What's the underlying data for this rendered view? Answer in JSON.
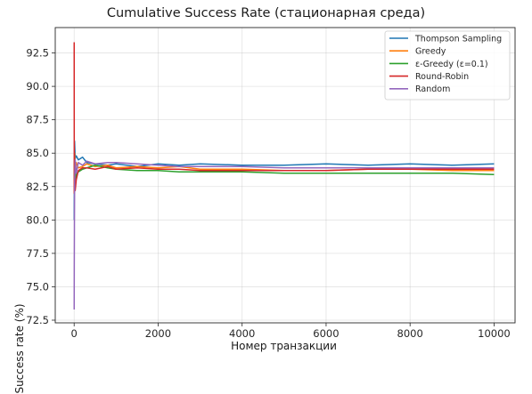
{
  "chart_data": {
    "type": "line",
    "title": "Cumulative Success Rate (стационарная среда)",
    "xlabel": "Номер транзакции",
    "ylabel": "Success rate (%)",
    "xlim": [
      -450,
      10500
    ],
    "ylim": [
      72.3,
      94.4
    ],
    "xticks": [
      0,
      2000,
      4000,
      6000,
      8000,
      10000
    ],
    "yticks": [
      72.5,
      75.0,
      77.5,
      80.0,
      82.5,
      85.0,
      87.5,
      90.0,
      92.5
    ],
    "ytick_labels": [
      "72.5",
      "75.0",
      "77.5",
      "80.0",
      "82.5",
      "85.0",
      "87.5",
      "90.0",
      "92.5"
    ],
    "grid": true,
    "legend_position": "top-right",
    "series": [
      {
        "name": "Thompson Sampling",
        "color": "#1f77b4",
        "x": [
          1,
          10,
          25,
          50,
          100,
          200,
          300,
          500,
          800,
          1000,
          1500,
          2000,
          2500,
          3000,
          4000,
          5000,
          6000,
          7000,
          8000,
          9000,
          10000
        ],
        "y": [
          80.0,
          85.9,
          84.6,
          84.8,
          84.5,
          84.7,
          84.3,
          84.2,
          84.1,
          84.2,
          84.0,
          84.2,
          84.1,
          84.2,
          84.1,
          84.1,
          84.2,
          84.1,
          84.2,
          84.1,
          84.2
        ]
      },
      {
        "name": "Greedy",
        "color": "#ff7f0e",
        "x": [
          1,
          10,
          25,
          50,
          100,
          200,
          300,
          500,
          800,
          1000,
          1500,
          2000,
          2500,
          3000,
          4000,
          5000,
          6000,
          7000,
          8000,
          9000,
          10000
        ],
        "y": [
          82.0,
          85.0,
          83.5,
          84.3,
          83.9,
          84.0,
          84.2,
          84.0,
          84.1,
          83.9,
          84.0,
          83.9,
          84.0,
          83.8,
          83.8,
          83.7,
          83.7,
          83.8,
          83.8,
          83.7,
          83.7
        ]
      },
      {
        "name": "ε-Greedy (ε=0.1)",
        "color": "#2ca02c",
        "x": [
          1,
          10,
          25,
          50,
          100,
          200,
          300,
          500,
          800,
          1000,
          1500,
          2000,
          2500,
          3000,
          4000,
          5000,
          6000,
          7000,
          8000,
          9000,
          10000
        ],
        "y": [
          83.0,
          84.5,
          82.8,
          83.4,
          83.6,
          83.8,
          83.9,
          84.1,
          83.9,
          83.8,
          83.7,
          83.7,
          83.6,
          83.6,
          83.6,
          83.5,
          83.5,
          83.5,
          83.5,
          83.5,
          83.4
        ]
      },
      {
        "name": "Round-Robin",
        "color": "#d62728",
        "x": [
          1,
          3,
          10,
          25,
          50,
          100,
          200,
          300,
          500,
          800,
          1000,
          1500,
          2000,
          2500,
          3000,
          4000,
          5000,
          6000,
          7000,
          8000,
          9000,
          10000
        ],
        "y": [
          93.3,
          82.0,
          84.0,
          82.2,
          83.0,
          83.7,
          83.9,
          83.9,
          83.8,
          84.0,
          83.8,
          83.9,
          83.8,
          83.8,
          83.7,
          83.7,
          83.7,
          83.7,
          83.8,
          83.8,
          83.8,
          83.8
        ]
      },
      {
        "name": "Random",
        "color": "#9467bd",
        "x": [
          1,
          3,
          10,
          25,
          50,
          100,
          200,
          300,
          500,
          800,
          1000,
          1500,
          2000,
          2500,
          3000,
          4000,
          5000,
          6000,
          7000,
          8000,
          9000,
          10000
        ],
        "y": [
          73.3,
          76.5,
          82.5,
          84.5,
          83.5,
          84.3,
          84.1,
          84.4,
          84.2,
          84.3,
          84.3,
          84.2,
          84.1,
          84.0,
          84.0,
          84.0,
          83.9,
          83.9,
          83.9,
          83.9,
          83.9,
          83.9
        ]
      }
    ]
  }
}
